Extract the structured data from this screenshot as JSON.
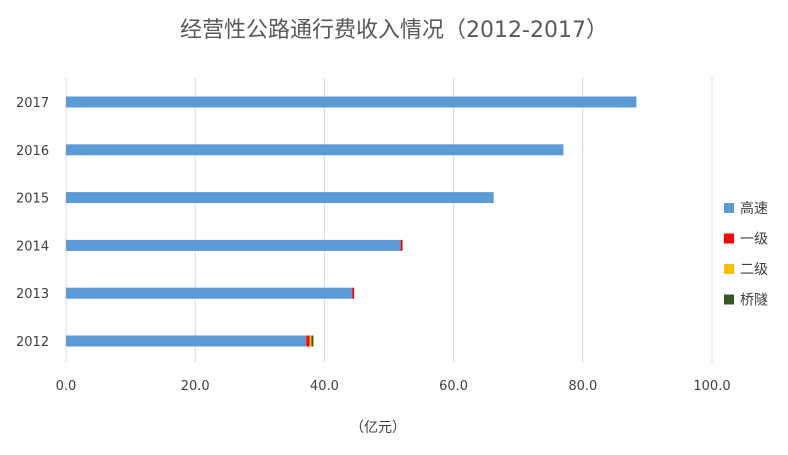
{
  "chart_data": {
    "type": "bar",
    "orientation": "horizontal",
    "stacked": true,
    "title": "经营性公路通行费收入情况（2012-2017）",
    "xlabel": "（亿元）",
    "ylabel": "",
    "categories": [
      "2017",
      "2016",
      "2015",
      "2014",
      "2013",
      "2012"
    ],
    "xlim": [
      0,
      100
    ],
    "x_ticks": [
      "0.0",
      "20.0",
      "40.0",
      "60.0",
      "80.0",
      "100.0"
    ],
    "grid": "vertical",
    "legend_position": "right",
    "series": [
      {
        "name": "高速",
        "color": "#5b9bd5",
        "values": [
          88.3,
          77.0,
          66.2,
          51.8,
          44.3,
          37.2
        ]
      },
      {
        "name": "一级",
        "color": "#ff0000",
        "values": [
          0,
          0,
          0,
          0.3,
          0.3,
          0.5
        ]
      },
      {
        "name": "二级",
        "color": "#ffc000",
        "values": [
          0,
          0,
          0,
          0,
          0,
          0.3
        ]
      },
      {
        "name": "桥隧",
        "color": "#375623",
        "values": [
          0,
          0,
          0,
          0,
          0,
          0.3
        ]
      }
    ]
  }
}
